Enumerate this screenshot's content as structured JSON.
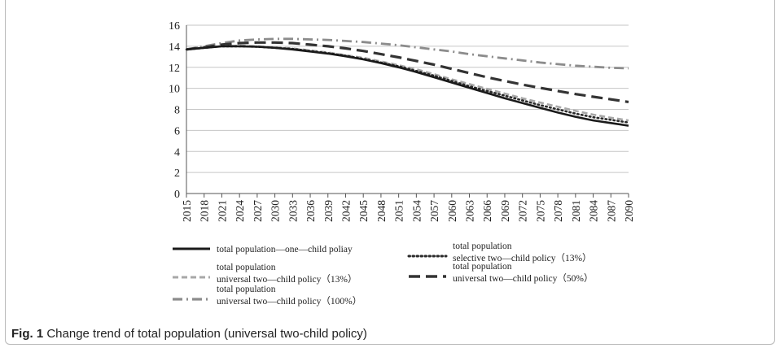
{
  "caption": {
    "label": "Fig. 1",
    "text": "Change trend of total population (universal two-child policy)"
  },
  "chart_data": {
    "type": "line",
    "title": "",
    "xlabel": "",
    "ylabel": "",
    "ylim": [
      0,
      16
    ],
    "yticks": [
      "0",
      "2",
      "4",
      "6",
      "8",
      "10",
      "12",
      "14",
      "16"
    ],
    "grid": true,
    "legend_placement": "bottom",
    "x": [
      2015,
      2018,
      2021,
      2024,
      2027,
      2030,
      2033,
      2036,
      2039,
      2042,
      2045,
      2048,
      2051,
      2054,
      2057,
      2060,
      2063,
      2066,
      2069,
      2072,
      2075,
      2078,
      2081,
      2084,
      2087,
      2090
    ],
    "x_tick_labels": [
      "2015",
      "2018",
      "2021",
      "2024",
      "2027",
      "2030",
      "2033",
      "2036",
      "2039",
      "2042",
      "2045",
      "2048",
      "2051",
      "2054",
      "2057",
      "2060",
      "2063",
      "2066",
      "2069",
      "2072",
      "2075",
      "2078",
      "2081",
      "2084",
      "2087",
      "2090"
    ],
    "series": [
      {
        "name_lines": [
          "total population—one—child poliay"
        ],
        "style": "solid",
        "color": "#1a1a1a",
        "values": [
          13.7,
          13.85,
          14.0,
          14.0,
          13.95,
          13.85,
          13.7,
          13.5,
          13.3,
          13.05,
          12.75,
          12.4,
          12.0,
          11.55,
          11.05,
          10.55,
          10.05,
          9.55,
          9.05,
          8.6,
          8.15,
          7.7,
          7.3,
          6.95,
          6.7,
          6.45
        ]
      },
      {
        "name_lines": [
          "total population",
          "selective two—child policy（13%）"
        ],
        "style": "dotted",
        "color": "#2a2a2a",
        "values": [
          13.7,
          13.85,
          14.0,
          14.0,
          13.95,
          13.85,
          13.75,
          13.55,
          13.35,
          13.1,
          12.8,
          12.45,
          12.1,
          11.65,
          11.2,
          10.7,
          10.2,
          9.75,
          9.3,
          8.85,
          8.4,
          8.0,
          7.6,
          7.25,
          7.0,
          6.75
        ]
      },
      {
        "name_lines": [
          "total population",
          "universal two—child policy（13%）"
        ],
        "style": "dashed",
        "color": "#a8a8a8",
        "values": [
          13.7,
          13.85,
          14.0,
          14.05,
          14.0,
          13.9,
          13.8,
          13.6,
          13.4,
          13.15,
          12.9,
          12.55,
          12.2,
          11.8,
          11.35,
          10.85,
          10.4,
          9.95,
          9.5,
          9.05,
          8.65,
          8.25,
          7.85,
          7.5,
          7.2,
          6.95
        ]
      },
      {
        "name_lines": [
          "total population",
          "universal two—child policy（50%）"
        ],
        "style": "longdash",
        "color": "#333333",
        "values": [
          13.7,
          13.9,
          14.15,
          14.3,
          14.35,
          14.35,
          14.3,
          14.15,
          14.0,
          13.8,
          13.55,
          13.25,
          12.95,
          12.6,
          12.25,
          11.85,
          11.45,
          11.05,
          10.7,
          10.35,
          10.05,
          9.75,
          9.45,
          9.2,
          8.95,
          8.7
        ]
      },
      {
        "name_lines": [
          "total population",
          "universal two—child policy（100%）"
        ],
        "style": "dashdot",
        "color": "#8c8c8c",
        "values": [
          13.7,
          14.0,
          14.3,
          14.55,
          14.65,
          14.7,
          14.7,
          14.65,
          14.6,
          14.5,
          14.4,
          14.25,
          14.1,
          13.9,
          13.7,
          13.5,
          13.25,
          13.05,
          12.85,
          12.65,
          12.45,
          12.3,
          12.15,
          12.05,
          11.95,
          11.9
        ]
      }
    ]
  }
}
